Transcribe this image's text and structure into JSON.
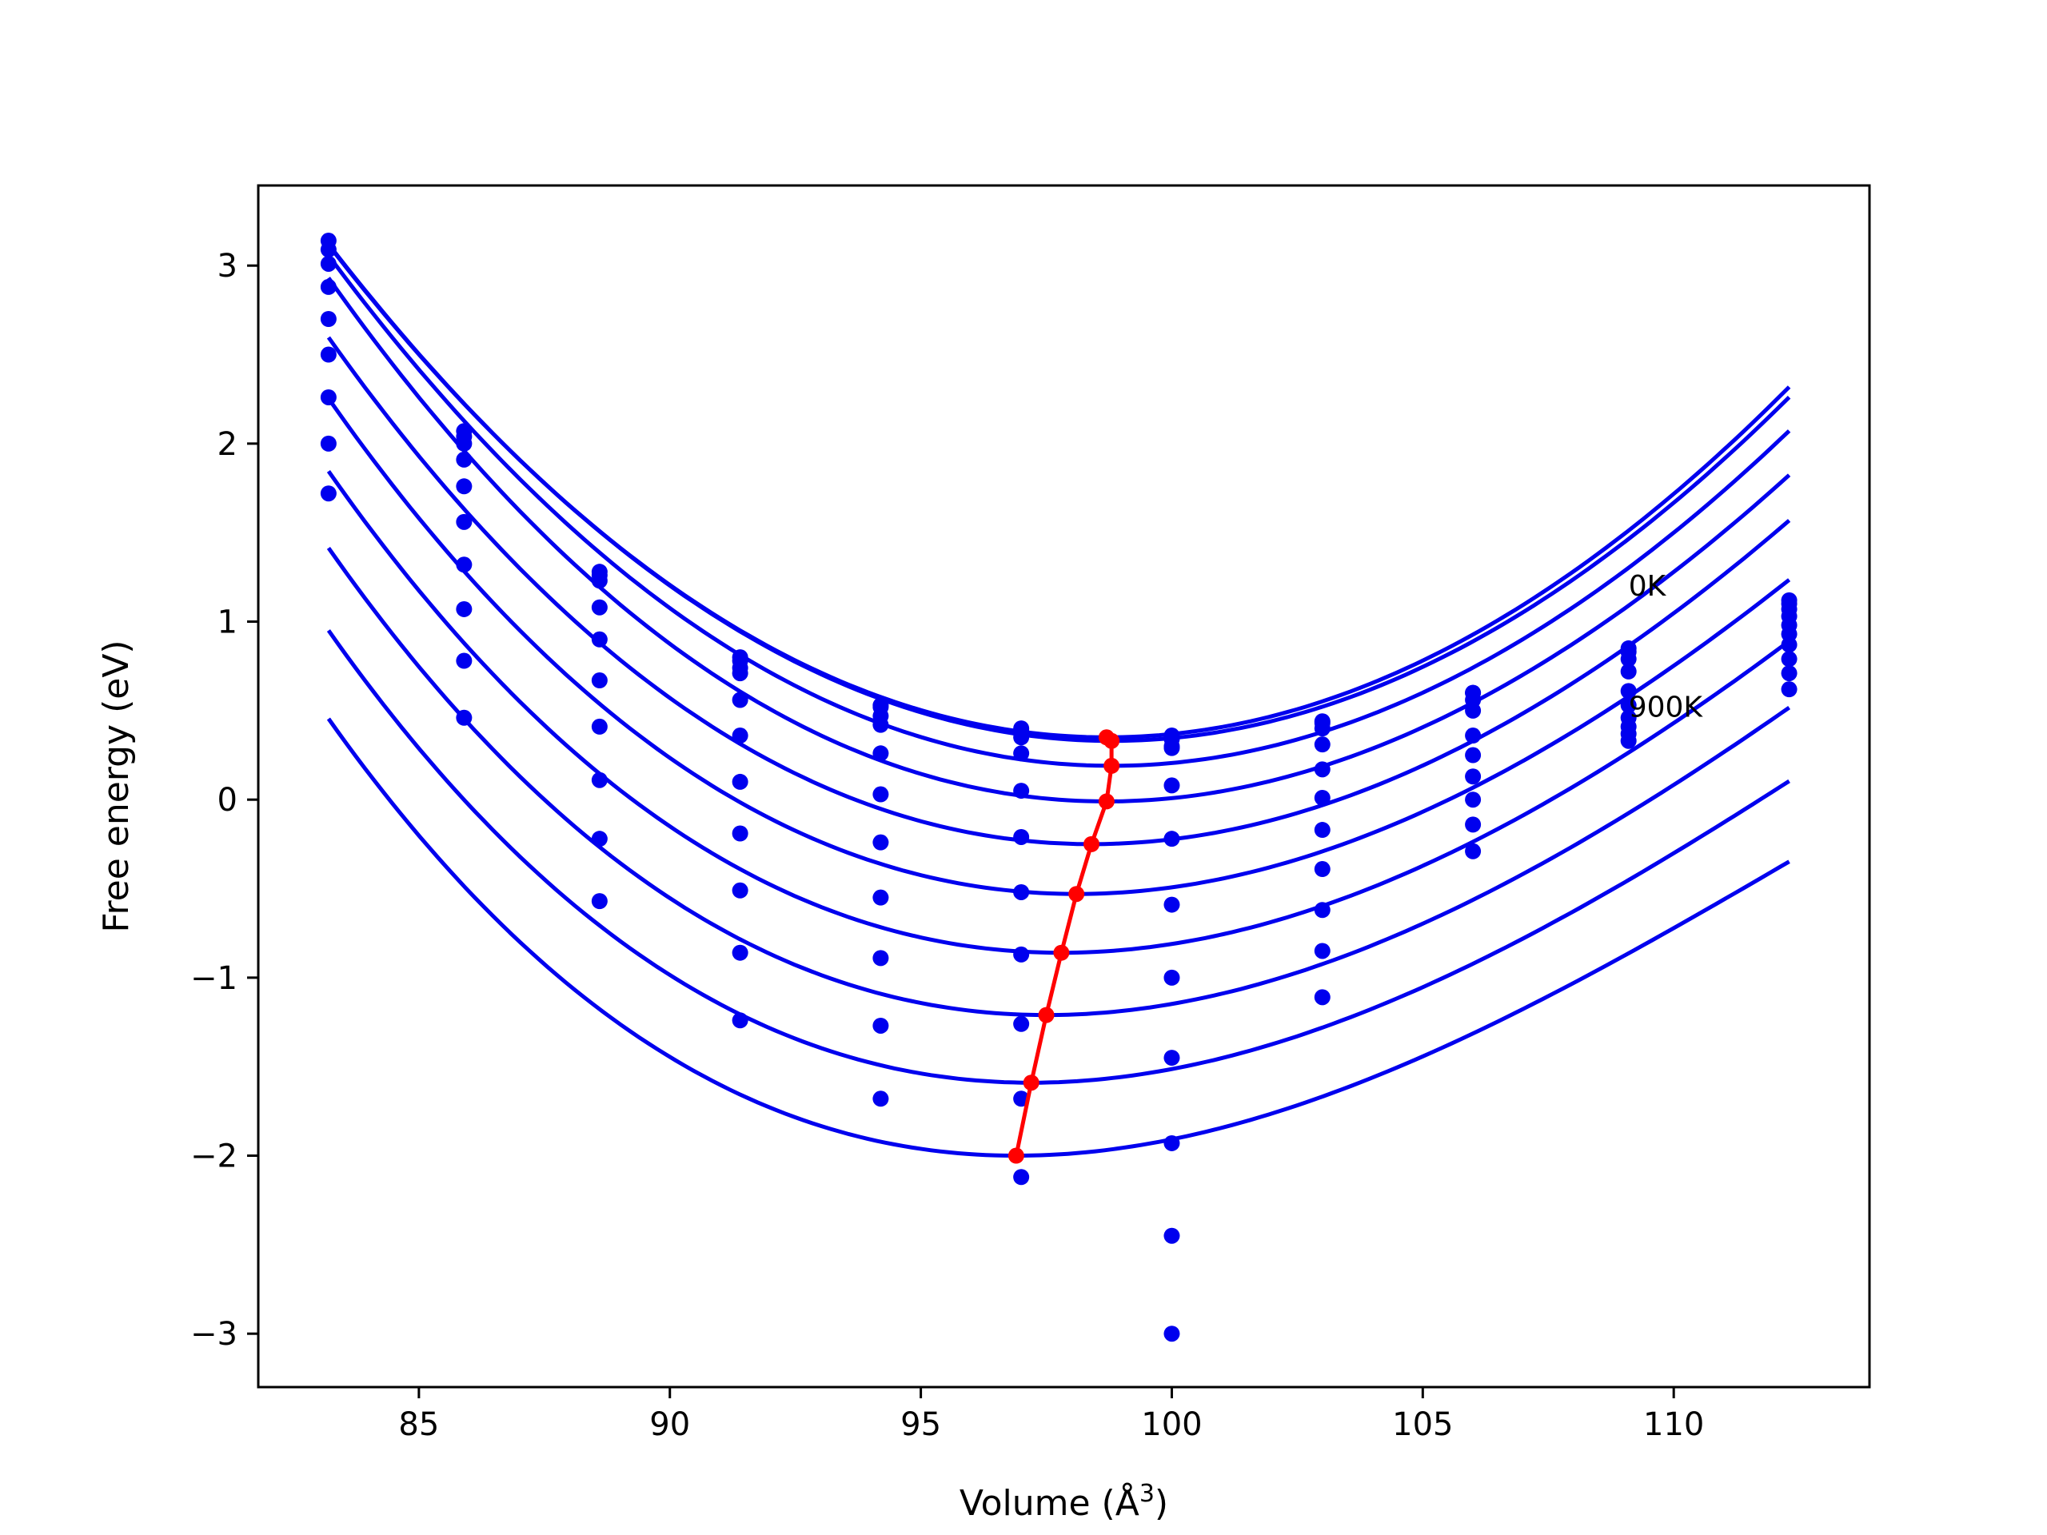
{
  "chart_data": {
    "type": "scatter",
    "xlabel": "Volume (Å",
    "xlabel_sup": "3",
    "xlabel_suffix": ")",
    "ylabel": "Free energy (eV)",
    "xlim": [
      81.8,
      113.9
    ],
    "ylim": [
      -3.3,
      3.45
    ],
    "xticks": [
      85,
      90,
      95,
      100,
      105,
      110
    ],
    "yticks": [
      -3,
      -2,
      -1,
      0,
      1,
      2,
      3
    ],
    "x_tick_labels": [
      "85",
      "90",
      "95",
      "100",
      "105",
      "110"
    ],
    "y_tick_labels": [
      "−3",
      "−2",
      "−1",
      "0",
      "1",
      "2",
      "3"
    ],
    "grid": false,
    "legend": "none",
    "annotations": [
      {
        "text": "0K",
        "x": 109.1,
        "y": 1.2
      },
      {
        "text": "900K",
        "x": 109.1,
        "y": 0.52
      }
    ],
    "colors": {
      "curves": "#0000ee",
      "points": "#0000ee",
      "minima": "#ff0000"
    },
    "volumes": [
      83.2,
      85.9,
      88.6,
      91.4,
      94.2,
      97.0,
      100.0,
      103.0,
      106.0,
      109.1,
      112.3
    ],
    "series": [
      {
        "values": [
          3.14,
          2.07,
          1.28,
          0.8,
          0.53,
          0.4,
          0.36,
          0.44,
          0.6,
          0.85,
          1.12
        ]
      },
      {
        "values": [
          3.09,
          2.04,
          1.26,
          0.78,
          0.52,
          0.39,
          0.34,
          0.43,
          0.6,
          0.83,
          1.1
        ]
      },
      {
        "values": [
          3.01,
          2.0,
          1.23,
          0.74,
          0.47,
          0.35,
          0.3,
          0.4,
          0.56,
          0.79,
          1.07
        ]
      },
      {
        "values": [
          2.88,
          1.91,
          1.08,
          0.71,
          0.42,
          0.26,
          0.29,
          0.31,
          0.5,
          0.72,
          1.03
        ]
      },
      {
        "values": [
          2.7,
          1.76,
          0.9,
          0.56,
          0.26,
          0.05,
          0.08,
          0.17,
          0.36,
          0.61,
          0.98
        ]
      },
      {
        "values": [
          2.5,
          1.56,
          0.67,
          0.36,
          0.03,
          -0.21,
          -0.22,
          0.01,
          0.25,
          0.53,
          0.93
        ]
      },
      {
        "values": [
          2.26,
          1.32,
          0.41,
          0.1,
          -0.24,
          -0.52,
          -0.59,
          -0.17,
          0.13,
          0.46,
          0.87
        ]
      },
      {
        "values": [
          2.0,
          1.07,
          0.11,
          -0.19,
          -0.55,
          -0.87,
          -1.0,
          -0.39,
          0.0,
          0.41,
          0.79
        ]
      },
      {
        "values": [
          1.72,
          0.78,
          -0.22,
          -0.51,
          -0.89,
          -1.26,
          -1.45,
          -0.62,
          -0.14,
          0.37,
          0.71
        ]
      },
      {
        "values": [
          null,
          0.46,
          -0.57,
          -0.86,
          -1.27,
          -1.68,
          -1.93,
          -0.85,
          -0.29,
          0.33,
          0.62
        ]
      },
      {
        "values": [
          null,
          null,
          null,
          -1.24,
          -1.68,
          -2.12,
          -2.45,
          -1.11,
          null,
          null,
          null
        ]
      },
      {
        "values": [
          null,
          null,
          null,
          null,
          null,
          null,
          -3.0,
          null,
          null,
          null,
          null
        ]
      }
    ],
    "fit_curves": [
      {
        "v0": 98.7,
        "f0": 0.35,
        "a": 0.01105,
        "b": 3e-05
      },
      {
        "v0": 98.8,
        "f0": 0.33,
        "a": 0.011,
        "b": 3e-05
      },
      {
        "v0": 98.8,
        "f0": 0.19,
        "a": 0.011,
        "b": 5e-05
      },
      {
        "v0": 98.7,
        "f0": -0.01,
        "a": 0.011,
        "b": 8e-05
      },
      {
        "v0": 98.4,
        "f0": -0.25,
        "a": 0.0108,
        "b": 0.0001
      },
      {
        "v0": 98.1,
        "f0": -0.53,
        "a": 0.0106,
        "b": 0.00013
      },
      {
        "v0": 97.8,
        "f0": -0.86,
        "a": 0.0105,
        "b": 0.00015
      },
      {
        "v0": 97.5,
        "f0": -1.21,
        "a": 0.0104,
        "b": 0.00017
      },
      {
        "v0": 97.2,
        "f0": -1.59,
        "a": 0.0103,
        "b": 0.00019
      },
      {
        "v0": 96.9,
        "f0": -2.0,
        "a": 0.0102,
        "b": 0.00021
      }
    ],
    "fit_range": [
      83.2,
      112.3
    ],
    "minima": {
      "x": [
        96.9,
        97.2,
        97.5,
        97.8,
        98.1,
        98.4,
        98.7,
        98.8,
        98.8,
        98.7
      ],
      "y": [
        -2.0,
        -1.59,
        -1.21,
        -0.86,
        -0.53,
        -0.25,
        -0.01,
        0.19,
        0.33,
        0.35
      ]
    }
  }
}
